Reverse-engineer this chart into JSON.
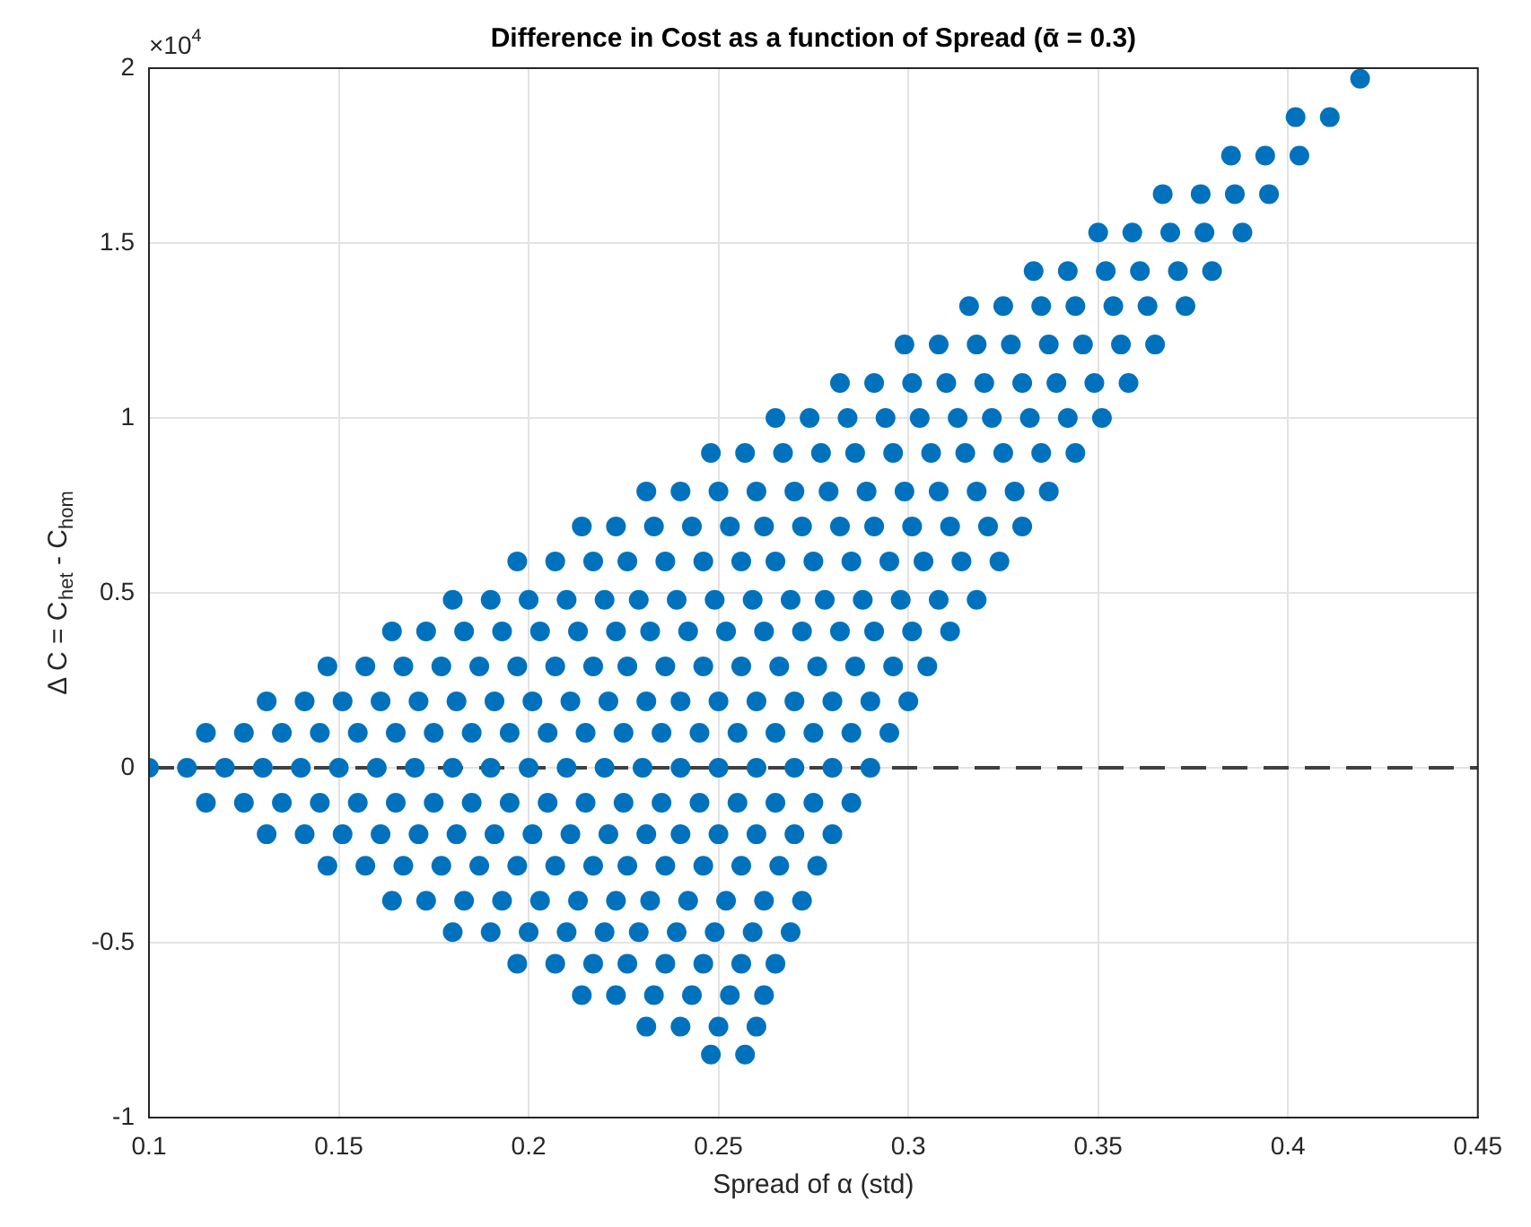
{
  "chart_data": {
    "type": "scatter",
    "title": "Difference in Cost as a function of Spread (ᾱ = 0.3)",
    "xlabel": "Spread of α (std)",
    "ylabel": "Δ C = C$_{het}$ - C$_{hom}$",
    "annotations": [
      "×10$^{4}$"
    ],
    "xlim": [
      0.1,
      0.45
    ],
    "xticks": [
      0.1,
      0.15,
      0.2,
      0.25,
      0.3,
      0.35,
      0.4,
      0.45
    ],
    "ylim": [
      -1,
      2
    ],
    "yticks": [
      -1,
      -0.5,
      0,
      0.5,
      1,
      1.5,
      2
    ],
    "grid": true,
    "marker": "circle",
    "ref_lines": [
      {
        "axis": "y",
        "value": 0,
        "color": "#404040",
        "line_style": "dashed"
      }
    ],
    "series": [
      {
        "color": "#0072bd",
        "x": [
          0.1,
          0.11,
          0.12,
          0.13,
          0.14,
          0.15,
          0.16,
          0.17,
          0.18,
          0.19,
          0.2,
          0.21,
          0.22,
          0.23,
          0.24,
          0.25,
          0.26,
          0.27,
          0.28,
          0.29
        ],
        "values": [
          0,
          0,
          0,
          0,
          0,
          0,
          0,
          0,
          0,
          0,
          0,
          0,
          0,
          0,
          0,
          0,
          0,
          0,
          0,
          0
        ]
      },
      {
        "color": "#0072bd",
        "x": [
          0.115,
          0.125,
          0.135,
          0.145,
          0.155,
          0.165,
          0.175,
          0.185,
          0.195,
          0.205,
          0.215,
          0.225,
          0.235,
          0.245,
          0.255,
          0.265,
          0.275,
          0.285,
          0.295
        ],
        "values": [
          0.1,
          0.1,
          0.1,
          0.1,
          0.1,
          0.1,
          0.1,
          0.1,
          0.1,
          0.1,
          0.1,
          0.1,
          0.1,
          0.1,
          0.1,
          0.1,
          0.1,
          0.1,
          0.1
        ]
      },
      {
        "color": "#0072bd",
        "x": [
          0.131,
          0.141,
          0.151,
          0.161,
          0.171,
          0.181,
          0.191,
          0.201,
          0.211,
          0.221,
          0.231,
          0.24,
          0.25,
          0.26,
          0.27,
          0.28,
          0.29,
          0.3
        ],
        "values": [
          0.19,
          0.19,
          0.19,
          0.19,
          0.19,
          0.19,
          0.19,
          0.19,
          0.19,
          0.19,
          0.19,
          0.19,
          0.19,
          0.19,
          0.19,
          0.19,
          0.19,
          0.19
        ]
      },
      {
        "color": "#0072bd",
        "x": [
          0.147,
          0.157,
          0.167,
          0.177,
          0.187,
          0.197,
          0.207,
          0.217,
          0.226,
          0.236,
          0.246,
          0.256,
          0.266,
          0.276,
          0.286,
          0.296,
          0.305
        ],
        "values": [
          0.29,
          0.29,
          0.29,
          0.29,
          0.29,
          0.29,
          0.29,
          0.29,
          0.29,
          0.29,
          0.29,
          0.29,
          0.29,
          0.29,
          0.29,
          0.29,
          0.29
        ]
      },
      {
        "color": "#0072bd",
        "x": [
          0.164,
          0.173,
          0.183,
          0.193,
          0.203,
          0.213,
          0.223,
          0.232,
          0.242,
          0.252,
          0.262,
          0.272,
          0.282,
          0.291,
          0.301,
          0.311
        ],
        "values": [
          0.39,
          0.39,
          0.39,
          0.39,
          0.39,
          0.39,
          0.39,
          0.39,
          0.39,
          0.39,
          0.39,
          0.39,
          0.39,
          0.39,
          0.39,
          0.39
        ]
      },
      {
        "color": "#0072bd",
        "x": [
          0.18,
          0.19,
          0.2,
          0.21,
          0.22,
          0.229,
          0.239,
          0.249,
          0.259,
          0.269,
          0.278,
          0.288,
          0.298,
          0.308,
          0.318
        ],
        "values": [
          0.48,
          0.48,
          0.48,
          0.48,
          0.48,
          0.48,
          0.48,
          0.48,
          0.48,
          0.48,
          0.48,
          0.48,
          0.48,
          0.48,
          0.48
        ]
      },
      {
        "color": "#0072bd",
        "x": [
          0.197,
          0.207,
          0.217,
          0.226,
          0.236,
          0.246,
          0.256,
          0.265,
          0.275,
          0.285,
          0.295,
          0.304,
          0.314,
          0.324
        ],
        "values": [
          0.59,
          0.59,
          0.59,
          0.59,
          0.59,
          0.59,
          0.59,
          0.59,
          0.59,
          0.59,
          0.59,
          0.59,
          0.59,
          0.59
        ]
      },
      {
        "color": "#0072bd",
        "x": [
          0.214,
          0.223,
          0.233,
          0.243,
          0.253,
          0.262,
          0.272,
          0.282,
          0.291,
          0.301,
          0.311,
          0.321,
          0.33
        ],
        "values": [
          0.69,
          0.69,
          0.69,
          0.69,
          0.69,
          0.69,
          0.69,
          0.69,
          0.69,
          0.69,
          0.69,
          0.69,
          0.69
        ]
      },
      {
        "color": "#0072bd",
        "x": [
          0.231,
          0.24,
          0.25,
          0.26,
          0.27,
          0.279,
          0.289,
          0.299,
          0.308,
          0.318,
          0.328,
          0.337
        ],
        "values": [
          0.79,
          0.79,
          0.79,
          0.79,
          0.79,
          0.79,
          0.79,
          0.79,
          0.79,
          0.79,
          0.79,
          0.79
        ]
      },
      {
        "color": "#0072bd",
        "x": [
          0.248,
          0.257,
          0.267,
          0.277,
          0.286,
          0.296,
          0.306,
          0.315,
          0.325,
          0.335,
          0.344
        ],
        "values": [
          0.9,
          0.9,
          0.9,
          0.9,
          0.9,
          0.9,
          0.9,
          0.9,
          0.9,
          0.9,
          0.9
        ]
      },
      {
        "color": "#0072bd",
        "x": [
          0.265,
          0.274,
          0.284,
          0.294,
          0.303,
          0.313,
          0.322,
          0.332,
          0.342,
          0.351
        ],
        "values": [
          1,
          1,
          1,
          1,
          1,
          1,
          1,
          1,
          1,
          1
        ]
      },
      {
        "color": "#0072bd",
        "x": [
          0.282,
          0.291,
          0.301,
          0.31,
          0.32,
          0.33,
          0.339,
          0.349,
          0.358
        ],
        "values": [
          1.1,
          1.1,
          1.1,
          1.1,
          1.1,
          1.1,
          1.1,
          1.1,
          1.1
        ]
      },
      {
        "color": "#0072bd",
        "x": [
          0.299,
          0.308,
          0.318,
          0.327,
          0.337,
          0.346,
          0.356,
          0.365
        ],
        "values": [
          1.21,
          1.21,
          1.21,
          1.21,
          1.21,
          1.21,
          1.21,
          1.21
        ]
      },
      {
        "color": "#0072bd",
        "x": [
          0.316,
          0.325,
          0.335,
          0.344,
          0.354,
          0.363,
          0.373
        ],
        "values": [
          1.32,
          1.32,
          1.32,
          1.32,
          1.32,
          1.32,
          1.32
        ]
      },
      {
        "color": "#0072bd",
        "x": [
          0.333,
          0.342,
          0.352,
          0.361,
          0.371,
          0.38
        ],
        "values": [
          1.42,
          1.42,
          1.42,
          1.42,
          1.42,
          1.42
        ]
      },
      {
        "color": "#0072bd",
        "x": [
          0.35,
          0.359,
          0.369,
          0.378,
          0.388
        ],
        "values": [
          1.53,
          1.53,
          1.53,
          1.53,
          1.53
        ]
      },
      {
        "color": "#0072bd",
        "x": [
          0.367,
          0.377,
          0.386,
          0.395
        ],
        "values": [
          1.64,
          1.64,
          1.64,
          1.64
        ]
      },
      {
        "color": "#0072bd",
        "x": [
          0.385,
          0.394,
          0.403
        ],
        "values": [
          1.75,
          1.75,
          1.75
        ]
      },
      {
        "color": "#0072bd",
        "x": [
          0.402,
          0.411
        ],
        "values": [
          1.86,
          1.86
        ]
      },
      {
        "color": "#0072bd",
        "x": [
          0.419
        ],
        "values": [
          1.97
        ]
      },
      {
        "color": "#0072bd",
        "x": [
          0.115,
          0.125,
          0.135,
          0.145,
          0.155,
          0.165,
          0.175,
          0.185,
          0.195,
          0.205,
          0.215,
          0.225,
          0.235,
          0.245,
          0.255,
          0.265,
          0.275,
          0.285
        ],
        "values": [
          -0.1,
          -0.1,
          -0.1,
          -0.1,
          -0.1,
          -0.1,
          -0.1,
          -0.1,
          -0.1,
          -0.1,
          -0.1,
          -0.1,
          -0.1,
          -0.1,
          -0.1,
          -0.1,
          -0.1,
          -0.1
        ]
      },
      {
        "color": "#0072bd",
        "x": [
          0.131,
          0.141,
          0.151,
          0.161,
          0.171,
          0.181,
          0.191,
          0.201,
          0.211,
          0.221,
          0.231,
          0.24,
          0.25,
          0.26,
          0.27,
          0.28
        ],
        "values": [
          -0.19,
          -0.19,
          -0.19,
          -0.19,
          -0.19,
          -0.19,
          -0.19,
          -0.19,
          -0.19,
          -0.19,
          -0.19,
          -0.19,
          -0.19,
          -0.19,
          -0.19,
          -0.19
        ]
      },
      {
        "color": "#0072bd",
        "x": [
          0.147,
          0.157,
          0.167,
          0.177,
          0.187,
          0.197,
          0.207,
          0.217,
          0.226,
          0.236,
          0.246,
          0.256,
          0.266,
          0.276
        ],
        "values": [
          -0.28,
          -0.28,
          -0.28,
          -0.28,
          -0.28,
          -0.28,
          -0.28,
          -0.28,
          -0.28,
          -0.28,
          -0.28,
          -0.28,
          -0.28,
          -0.28
        ]
      },
      {
        "color": "#0072bd",
        "x": [
          0.164,
          0.173,
          0.183,
          0.193,
          0.203,
          0.213,
          0.223,
          0.232,
          0.242,
          0.252,
          0.262,
          0.272
        ],
        "values": [
          -0.38,
          -0.38,
          -0.38,
          -0.38,
          -0.38,
          -0.38,
          -0.38,
          -0.38,
          -0.38,
          -0.38,
          -0.38,
          -0.38
        ]
      },
      {
        "color": "#0072bd",
        "x": [
          0.18,
          0.19,
          0.2,
          0.21,
          0.22,
          0.229,
          0.239,
          0.249,
          0.259,
          0.269
        ],
        "values": [
          -0.47,
          -0.47,
          -0.47,
          -0.47,
          -0.47,
          -0.47,
          -0.47,
          -0.47,
          -0.47,
          -0.47
        ]
      },
      {
        "color": "#0072bd",
        "x": [
          0.197,
          0.207,
          0.217,
          0.226,
          0.236,
          0.246,
          0.256,
          0.265
        ],
        "values": [
          -0.56,
          -0.56,
          -0.56,
          -0.56,
          -0.56,
          -0.56,
          -0.56,
          -0.56
        ]
      },
      {
        "color": "#0072bd",
        "x": [
          0.214,
          0.223,
          0.233,
          0.243,
          0.253,
          0.262
        ],
        "values": [
          -0.65,
          -0.65,
          -0.65,
          -0.65,
          -0.65,
          -0.65
        ]
      },
      {
        "color": "#0072bd",
        "x": [
          0.231,
          0.24,
          0.25,
          0.26
        ],
        "values": [
          -0.74,
          -0.74,
          -0.74,
          -0.74
        ]
      },
      {
        "color": "#0072bd",
        "x": [
          0.248,
          0.257
        ],
        "values": [
          -0.82,
          -0.82
        ]
      }
    ]
  }
}
